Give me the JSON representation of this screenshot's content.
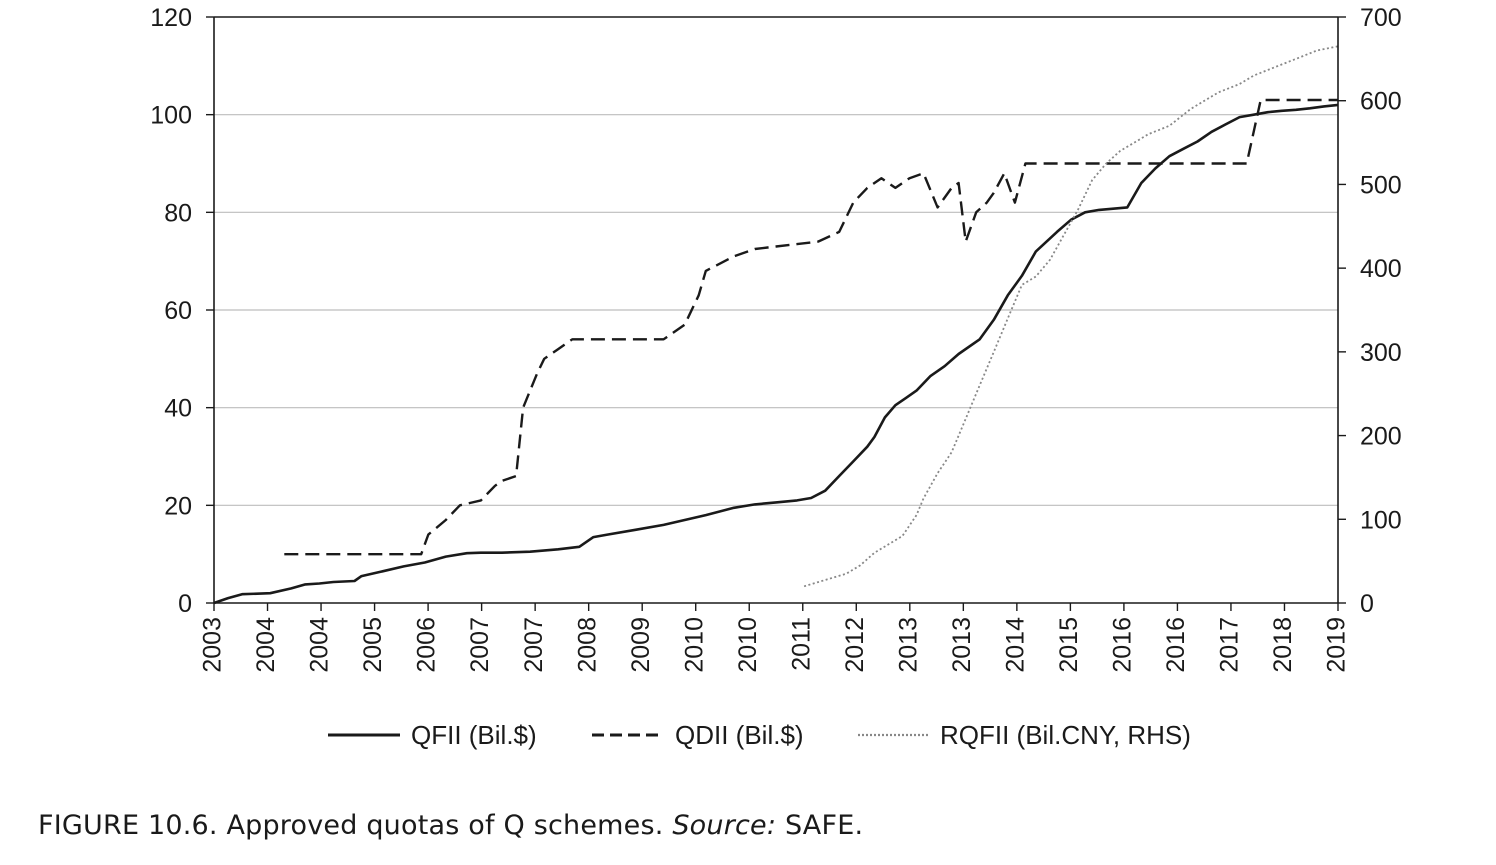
{
  "caption": {
    "main": "FIGURE 10.6. Approved quotas of Q schemes.",
    "source_label": "Source:",
    "source_value": "SAFE."
  },
  "chart_data": {
    "type": "line",
    "title": "",
    "xlabel": "",
    "ylabel": "",
    "y2label": "",
    "x_tick_labels": [
      "2003",
      "2004",
      "2004",
      "2005",
      "2006",
      "2007",
      "2007",
      "2008",
      "2009",
      "2010",
      "2010",
      "2011",
      "2012",
      "2013",
      "2013",
      "2014",
      "2015",
      "2016",
      "2016",
      "2017",
      "2018",
      "2019"
    ],
    "xlim": [
      2003.0,
      2019.0
    ],
    "ylim": [
      0,
      120
    ],
    "y2lim": [
      0,
      700
    ],
    "y_ticks": [
      0,
      20,
      40,
      60,
      80,
      100,
      120
    ],
    "y2_ticks": [
      0,
      100,
      200,
      300,
      400,
      500,
      600,
      700
    ],
    "grid": "horizontal",
    "legend_position": "bottom",
    "series": [
      {
        "name": "QFII (Bil.$)",
        "axis": "left",
        "style": "solid",
        "color": "#1a1a1a",
        "x": [
          2003.0,
          2003.2,
          2003.4,
          2003.8,
          2004.1,
          2004.3,
          2004.5,
          2004.7,
          2005.0,
          2005.1,
          2005.4,
          2005.7,
          2006.0,
          2006.3,
          2006.6,
          2006.8,
          2007.1,
          2007.5,
          2007.9,
          2008.2,
          2008.4,
          2008.6,
          2009.0,
          2009.4,
          2009.7,
          2010.0,
          2010.4,
          2010.7,
          2011.0,
          2011.3,
          2011.5,
          2011.7,
          2011.9,
          2012.1,
          2012.3,
          2012.4,
          2012.55,
          2012.7,
          2012.85,
          2013.0,
          2013.2,
          2013.4,
          2013.6,
          2013.9,
          2014.1,
          2014.3,
          2014.5,
          2014.7,
          2015.0,
          2015.2,
          2015.4,
          2015.6,
          2016.0,
          2016.2,
          2016.4,
          2016.6,
          2016.8,
          2017.0,
          2017.2,
          2017.4,
          2017.6,
          2017.8,
          2018.0,
          2018.2,
          2018.4,
          2018.6,
          2018.8,
          2019.0
        ],
        "y": [
          0.0,
          1.0,
          1.8,
          2.0,
          3.0,
          3.8,
          4.0,
          4.3,
          4.5,
          5.5,
          6.5,
          7.5,
          8.3,
          9.5,
          10.2,
          10.3,
          10.3,
          10.5,
          11.0,
          11.5,
          13.5,
          14.0,
          15.0,
          16.0,
          17.0,
          18.0,
          19.5,
          20.2,
          20.6,
          21.0,
          21.5,
          23.0,
          26.0,
          29.0,
          32.0,
          34.0,
          38.0,
          40.5,
          42.0,
          43.5,
          46.5,
          48.5,
          51.0,
          54.0,
          58.0,
          63.0,
          67.0,
          72.0,
          76.0,
          78.5,
          80.0,
          80.5,
          81.0,
          86.0,
          89.0,
          91.5,
          93.0,
          94.5,
          96.5,
          98.0,
          99.5,
          100.0,
          100.5,
          100.8,
          101.0,
          101.3,
          101.7,
          102.0
        ]
      },
      {
        "name": "QDII (Bil.$)",
        "axis": "left",
        "style": "dashed",
        "color": "#1a1a1a",
        "x": [
          2004.0,
          2004.5,
          2005.0,
          2005.5,
          2005.95,
          2006.05,
          2006.3,
          2006.5,
          2006.8,
          2007.0,
          2007.1,
          2007.3,
          2007.4,
          2007.6,
          2007.7,
          2007.9,
          2008.1,
          2008.5,
          2009.0,
          2009.4,
          2009.7,
          2009.9,
          2010.0,
          2010.4,
          2010.7,
          2011.0,
          2011.3,
          2011.6,
          2011.9,
          2012.1,
          2012.3,
          2012.5,
          2012.7,
          2012.9,
          2013.1,
          2013.3,
          2013.5,
          2013.6,
          2013.7,
          2013.85,
          2014.0,
          2014.1,
          2014.25,
          2014.4,
          2014.55,
          2014.7,
          2015.0,
          2015.5,
          2016.0,
          2016.5,
          2017.0,
          2017.5,
          2017.7,
          2017.9,
          2018.2,
          2018.6,
          2019.0
        ],
        "y": [
          10.0,
          10.0,
          10.0,
          10.0,
          10.0,
          14.0,
          17.0,
          20.0,
          21.0,
          24.0,
          25.0,
          26.0,
          40.0,
          47.0,
          50.0,
          52.0,
          54.0,
          54.0,
          54.0,
          54.0,
          57.0,
          63.0,
          68.0,
          71.0,
          72.5,
          73.0,
          73.5,
          74.0,
          76.0,
          82.0,
          85.0,
          87.0,
          85.0,
          87.0,
          88.0,
          81.0,
          85.0,
          86.0,
          74.0,
          80.0,
          82.0,
          84.0,
          88.0,
          82.0,
          90.0,
          90.0,
          90.0,
          90.0,
          90.0,
          90.0,
          90.0,
          90.0,
          90.0,
          103.0,
          103.0,
          103.0,
          103.0
        ]
      },
      {
        "name": "RQFII (Bil.CNY, RHS)",
        "axis": "right",
        "style": "dotted",
        "color": "#888888",
        "x": [
          2011.4,
          2011.6,
          2011.8,
          2012.0,
          2012.2,
          2012.4,
          2012.6,
          2012.8,
          2013.0,
          2013.1,
          2013.3,
          2013.5,
          2013.7,
          2013.9,
          2014.1,
          2014.3,
          2014.5,
          2014.7,
          2014.9,
          2015.1,
          2015.3,
          2015.5,
          2015.7,
          2015.9,
          2016.1,
          2016.3,
          2016.6,
          2016.9,
          2017.1,
          2017.3,
          2017.6,
          2017.8,
          2018.1,
          2018.4,
          2018.7,
          2019.0
        ],
        "y": [
          20,
          25,
          30,
          35,
          45,
          60,
          70,
          80,
          105,
          125,
          155,
          180,
          220,
          260,
          300,
          340,
          380,
          390,
          410,
          440,
          470,
          505,
          525,
          540,
          550,
          560,
          570,
          590,
          600,
          610,
          620,
          630,
          640,
          650,
          660,
          665
        ]
      }
    ]
  },
  "colors": {
    "axis": "#1a1a1a",
    "grid": "#bdbdbd",
    "qfii": "#1a1a1a",
    "qdii": "#1a1a1a",
    "rqfii": "#888888"
  }
}
